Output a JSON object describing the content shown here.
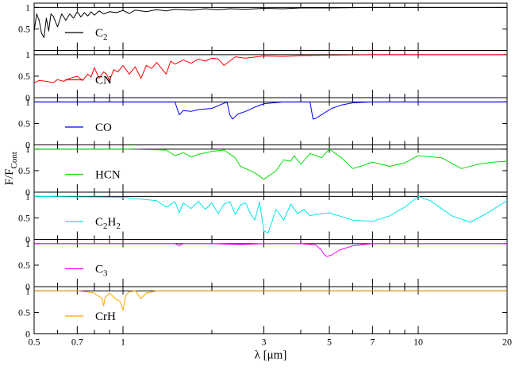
{
  "chart_data": {
    "type": "line",
    "x_scale": "log",
    "xlim": [
      0.5,
      20
    ],
    "xlabel": "λ [μm]",
    "ylabel": "F/F",
    "ylabel_sub": "Cont",
    "x_ticks": [
      {
        "v": 0.5,
        "label": "0.5"
      },
      {
        "v": 0.7,
        "label": "0.7"
      },
      {
        "v": 1,
        "label": "1"
      },
      {
        "v": 3,
        "label": "3"
      },
      {
        "v": 5,
        "label": "5"
      },
      {
        "v": 7,
        "label": "7"
      },
      {
        "v": 10,
        "label": "10"
      },
      {
        "v": 20,
        "label": "20"
      }
    ],
    "x_minor_ticks": [
      0.6,
      0.8,
      0.9,
      2,
      4,
      6,
      8,
      9
    ],
    "panels": [
      {
        "name": "C2",
        "label": "C",
        "sub": "2",
        "color": "#000000",
        "ylim": [
          0,
          1.1
        ],
        "y_ticks": [
          "0.5",
          "1"
        ],
        "x": [
          0.5,
          0.51,
          0.52,
          0.53,
          0.54,
          0.55,
          0.56,
          0.57,
          0.58,
          0.6,
          0.62,
          0.64,
          0.66,
          0.68,
          0.7,
          0.72,
          0.74,
          0.76,
          0.78,
          0.8,
          0.83,
          0.86,
          0.9,
          0.95,
          1.0,
          1.05,
          1.1,
          1.2,
          1.3,
          1.4,
          1.5,
          1.7,
          1.9,
          2.1,
          2.3,
          2.6,
          3.0,
          3.5,
          4.0,
          5.0,
          7.0,
          10.0,
          20.0
        ],
        "y": [
          0.45,
          0.85,
          0.7,
          0.4,
          0.3,
          0.75,
          0.45,
          0.85,
          0.8,
          0.55,
          0.85,
          0.7,
          0.85,
          0.75,
          0.9,
          0.78,
          0.88,
          0.8,
          0.9,
          0.82,
          0.92,
          0.85,
          0.9,
          0.88,
          0.93,
          0.86,
          0.94,
          0.9,
          0.95,
          0.92,
          0.96,
          0.94,
          0.97,
          0.95,
          0.97,
          0.96,
          0.98,
          0.97,
          0.99,
          0.99,
          1.0,
          1.0,
          1.0
        ]
      },
      {
        "name": "CN",
        "label": "CN",
        "sub": "",
        "color": "#ff0000",
        "ylim": [
          0,
          1.1
        ],
        "y_ticks": [
          "0",
          "0.5",
          "1"
        ],
        "x": [
          0.5,
          0.52,
          0.55,
          0.58,
          0.6,
          0.63,
          0.66,
          0.7,
          0.73,
          0.76,
          0.78,
          0.8,
          0.83,
          0.86,
          0.88,
          0.9,
          0.93,
          0.96,
          1.0,
          1.05,
          1.1,
          1.15,
          1.2,
          1.25,
          1.3,
          1.4,
          1.45,
          1.5,
          1.6,
          1.7,
          1.8,
          1.9,
          2.0,
          2.1,
          2.2,
          2.4,
          2.6,
          3.0,
          3.5,
          4.0,
          5.0,
          7.0,
          10.0,
          20.0
        ],
        "y": [
          0.35,
          0.4,
          0.38,
          0.35,
          0.42,
          0.38,
          0.45,
          0.5,
          0.4,
          0.55,
          0.48,
          0.7,
          0.45,
          0.6,
          0.55,
          0.4,
          0.65,
          0.6,
          0.75,
          0.55,
          0.72,
          0.45,
          0.75,
          0.68,
          0.82,
          0.55,
          0.85,
          0.78,
          0.88,
          0.8,
          0.9,
          0.85,
          0.92,
          0.9,
          0.75,
          0.95,
          0.92,
          0.97,
          0.96,
          0.98,
          0.99,
          1.0,
          1.0,
          1.0
        ]
      },
      {
        "name": "CO",
        "label": "CO",
        "sub": "",
        "color": "#0000ff",
        "ylim": [
          0,
          1.1
        ],
        "y_ticks": [
          "0",
          "0.5",
          "1"
        ],
        "x": [
          0.5,
          1.0,
          1.5,
          1.55,
          1.6,
          1.7,
          1.8,
          2.0,
          2.25,
          2.3,
          2.35,
          2.45,
          2.6,
          2.8,
          3.0,
          3.5,
          4.0,
          4.3,
          4.4,
          4.5,
          4.7,
          4.9,
          5.1,
          5.5,
          6.0,
          7.0,
          10.0,
          20.0
        ],
        "y": [
          1.0,
          1.0,
          1.0,
          0.7,
          0.8,
          0.78,
          0.82,
          0.85,
          1.0,
          0.7,
          0.6,
          0.72,
          0.78,
          0.88,
          0.96,
          1.0,
          1.0,
          1.0,
          0.6,
          0.62,
          0.7,
          0.78,
          0.85,
          0.93,
          0.98,
          1.0,
          1.0,
          1.0
        ]
      },
      {
        "name": "HCN",
        "label": "HCN",
        "sub": "",
        "color": "#00e000",
        "ylim": [
          0,
          1.1
        ],
        "y_ticks": [
          "0",
          "0.5",
          "1"
        ],
        "x": [
          0.5,
          1.0,
          1.4,
          1.5,
          1.6,
          1.7,
          1.8,
          2.0,
          2.2,
          2.4,
          2.5,
          2.6,
          2.8,
          3.0,
          3.3,
          3.5,
          3.7,
          3.8,
          4.0,
          4.3,
          4.7,
          5.0,
          5.5,
          6.0,
          6.5,
          7.0,
          8.0,
          9.0,
          10.0,
          12.0,
          14.0,
          16.0,
          18.0,
          20.0
        ],
        "y": [
          1.0,
          1.0,
          0.98,
          0.85,
          0.92,
          0.82,
          0.88,
          0.95,
          0.98,
          0.8,
          0.6,
          0.55,
          0.45,
          0.3,
          0.5,
          0.75,
          0.72,
          0.85,
          0.65,
          0.9,
          0.8,
          1.0,
          0.8,
          0.55,
          0.62,
          0.7,
          0.6,
          0.68,
          0.85,
          0.8,
          0.55,
          0.65,
          0.7,
          0.72
        ]
      },
      {
        "name": "C2H2",
        "label": "C",
        "label2": "H",
        "sub": "2",
        "sub2": "2",
        "color": "#00e5e5",
        "ylim": [
          0,
          1.1
        ],
        "y_ticks": [
          "0",
          "0.5",
          "1"
        ],
        "x": [
          0.5,
          1.0,
          1.3,
          1.4,
          1.5,
          1.55,
          1.6,
          1.7,
          1.8,
          1.9,
          2.0,
          2.1,
          2.2,
          2.3,
          2.4,
          2.5,
          2.6,
          2.7,
          2.8,
          2.9,
          3.0,
          3.1,
          3.3,
          3.5,
          3.7,
          3.9,
          4.1,
          4.3,
          4.5,
          5.0,
          6.0,
          7.0,
          8.0,
          9.0,
          10.0,
          11.0,
          13.0,
          15.0,
          17.0,
          20.0
        ],
        "y": [
          1.0,
          0.98,
          0.9,
          0.75,
          0.88,
          0.62,
          0.85,
          0.72,
          0.88,
          0.7,
          0.85,
          0.6,
          0.82,
          0.88,
          0.58,
          0.8,
          0.85,
          0.6,
          0.45,
          0.88,
          0.2,
          0.15,
          0.7,
          0.45,
          0.82,
          0.6,
          0.7,
          0.55,
          0.58,
          0.62,
          0.45,
          0.42,
          0.55,
          0.75,
          1.0,
          0.9,
          0.55,
          0.4,
          0.6,
          0.9
        ]
      },
      {
        "name": "C3",
        "label": "C",
        "sub": "3",
        "color": "#ff00ff",
        "ylim": [
          0,
          1.1
        ],
        "y_ticks": [
          "0",
          "0.5",
          "1"
        ],
        "x": [
          0.5,
          1.0,
          1.5,
          1.55,
          1.6,
          2.0,
          2.5,
          3.0,
          4.0,
          4.5,
          4.7,
          4.8,
          4.9,
          5.1,
          5.4,
          6.0,
          7.0,
          10.0,
          20.0
        ],
        "y": [
          1.0,
          1.0,
          1.0,
          0.95,
          1.0,
          1.0,
          0.98,
          1.0,
          1.0,
          0.97,
          0.85,
          0.75,
          0.7,
          0.74,
          0.85,
          0.95,
          1.0,
          1.0,
          1.0
        ]
      },
      {
        "name": "CrH",
        "label": "CrH",
        "sub": "",
        "color": "#ffa500",
        "ylim": [
          0,
          1.1
        ],
        "y_ticks": [
          "0",
          "0.5",
          "1"
        ],
        "x": [
          0.5,
          0.7,
          0.75,
          0.8,
          0.85,
          0.86,
          0.87,
          0.9,
          0.95,
          0.98,
          1.0,
          1.02,
          1.05,
          1.1,
          1.15,
          1.2,
          1.3,
          1.5,
          3.0,
          20.0
        ],
        "y": [
          1.0,
          1.0,
          0.98,
          0.95,
          0.82,
          0.65,
          0.85,
          0.95,
          0.8,
          0.75,
          0.55,
          0.9,
          0.98,
          1.0,
          0.82,
          0.95,
          1.0,
          1.0,
          1.0,
          1.0
        ]
      }
    ]
  }
}
